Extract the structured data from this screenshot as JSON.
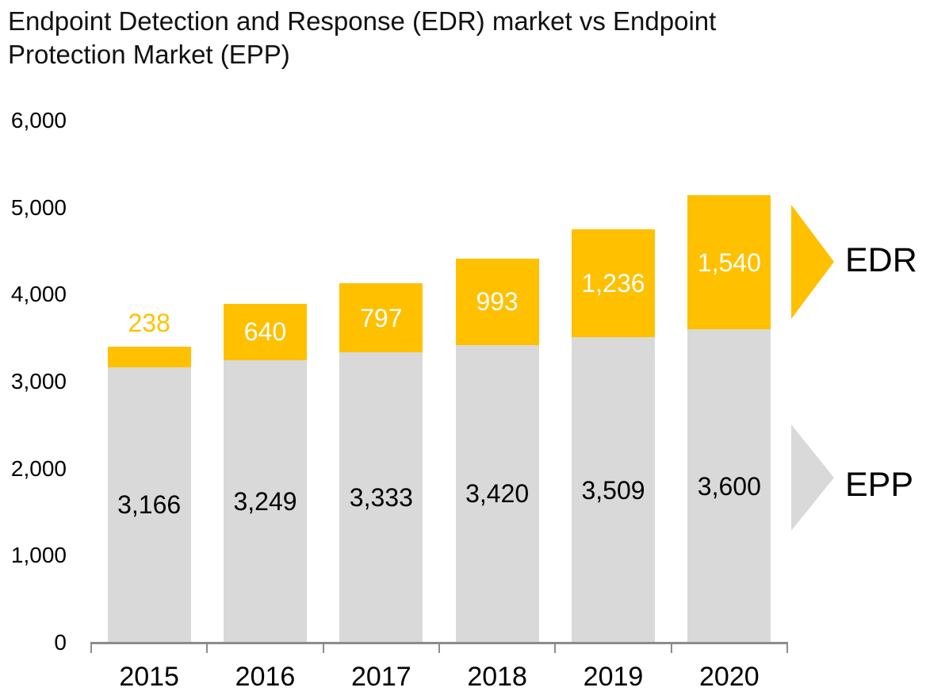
{
  "page": {
    "title": "Endpoint Detection and Response (EDR) market vs Endpoint\nProtection Market (EPP)"
  },
  "chart_data": {
    "type": "bar",
    "stacked": true,
    "title": "Endpoint Detection and Response (EDR) market vs Endpoint Protection Market (EPP)",
    "categories": [
      "2015",
      "2016",
      "2017",
      "2018",
      "2019",
      "2020"
    ],
    "series": [
      {
        "name": "EPP",
        "color": "#D9D9D9",
        "label_color_inside": "#000000",
        "values": [
          3166,
          3249,
          3333,
          3420,
          3509,
          3600
        ]
      },
      {
        "name": "EDR",
        "color": "#FFC000",
        "label_color_inside": "#FFFFFF",
        "label_color_outside": "#FFC000",
        "values": [
          238,
          640,
          797,
          993,
          1236,
          1540
        ]
      }
    ],
    "ylim": [
      0,
      6000
    ],
    "yticks": [
      0,
      1000,
      2000,
      3000,
      4000,
      5000,
      6000
    ],
    "grid": false,
    "legend_position": "right",
    "legend": [
      {
        "label": "EDR",
        "color": "#FFC000"
      },
      {
        "label": "EPP",
        "color": "#D9D9D9"
      }
    ],
    "axis_color": "#8C8C8C",
    "xlabel": "",
    "ylabel": ""
  }
}
